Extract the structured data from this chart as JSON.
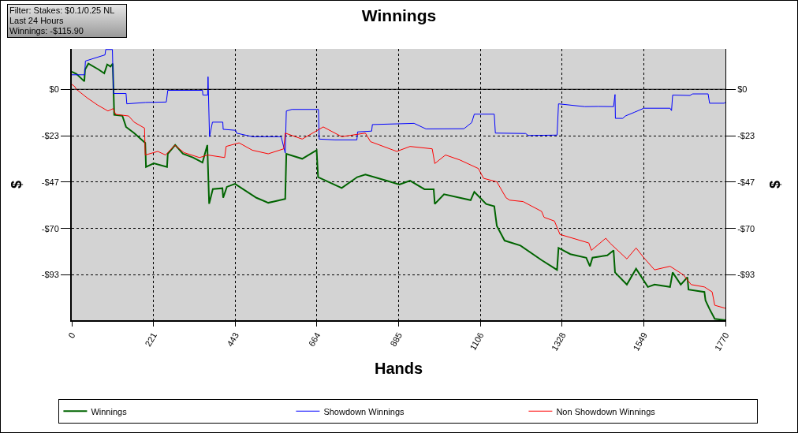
{
  "chart_data": {
    "type": "line",
    "title": "Winnings",
    "xlabel": "Hands",
    "ylabel": "$",
    "y2label": "$",
    "annotations": [
      "Filter: Stakes: $0.1/0.25 NL",
      "Last 24 Hours",
      "Winnings: -$115.90"
    ],
    "xlim": [
      0,
      1770
    ],
    "xticks": [
      0,
      221,
      443,
      664,
      885,
      1106,
      1328,
      1549,
      1770
    ],
    "ylim": [
      -116,
      20.3
    ],
    "yticks": [
      {
        "value": 0,
        "label": "$0"
      },
      {
        "value": -23.3,
        "label": "-$23"
      },
      {
        "value": -46.6,
        "label": "-$47"
      },
      {
        "value": -69.9,
        "label": "-$70"
      },
      {
        "value": -93.2,
        "label": "-$93"
      }
    ],
    "y2lim": [
      -116,
      20.3
    ],
    "y2ticks": [
      {
        "value": 0,
        "label": "$0"
      },
      {
        "value": -23.3,
        "label": "-$23"
      },
      {
        "value": -46.6,
        "label": "-$47"
      },
      {
        "value": -69.9,
        "label": "-$70"
      },
      {
        "value": -93.2,
        "label": "-$93"
      }
    ],
    "ref_lines": [
      {
        "axis": "y",
        "value": 0,
        "color": "#000000"
      }
    ],
    "grid": true,
    "line_style": "solid",
    "marker": "none",
    "legend": "bottom",
    "series": [
      {
        "name": "Winnings",
        "color": "#006400",
        "x": [
          0,
          13,
          34,
          36,
          45,
          73,
          88,
          96,
          105,
          111,
          115,
          137,
          147,
          169,
          199,
          201,
          222,
          258,
          260,
          280,
          301,
          329,
          354,
          367,
          372,
          382,
          408,
          410,
          420,
          442,
          500,
          532,
          578,
          581,
          624,
          663,
          667,
          731,
          773,
          795,
          852,
          887,
          916,
          955,
          980,
          983,
          1008,
          1080,
          1090,
          1122,
          1144,
          1151,
          1172,
          1215,
          1272,
          1314,
          1318,
          1350,
          1393,
          1403,
          1410,
          1450,
          1467,
          1471,
          1503,
          1528,
          1560,
          1578,
          1620,
          1627,
          1649,
          1667,
          1670,
          1713,
          1716,
          1727,
          1741,
          1766,
          1770
        ],
        "values": [
          8.8,
          7.7,
          4,
          9.9,
          12.9,
          9.9,
          8,
          12.5,
          11.4,
          12.9,
          -12.8,
          -13.3,
          -18.9,
          -22,
          -26.9,
          -39,
          -37.2,
          -39,
          -32.4,
          -28,
          -32.4,
          -34.3,
          -36.8,
          -28,
          -57.5,
          -50.1,
          -49.7,
          -54.5,
          -49,
          -47.5,
          -54.5,
          -57,
          -55.1,
          -32.4,
          -34.9,
          -30.6,
          -44.1,
          -49.6,
          -44.1,
          -42.8,
          -45.9,
          -47.8,
          -45.9,
          -50.2,
          -50.2,
          -57.6,
          -52.7,
          -55.7,
          -51.5,
          -57.6,
          -58.8,
          -68.6,
          -76,
          -78.5,
          -85.8,
          -90.7,
          -79.7,
          -82.8,
          -84.6,
          -88.9,
          -84.6,
          -83.4,
          -80.9,
          -92,
          -98.1,
          -90.1,
          -99.3,
          -98.1,
          -99.3,
          -92,
          -98.1,
          -94.4,
          -100.6,
          -101.8,
          -106.1,
          -110.4,
          -115.3,
          -115.9,
          -115.9
        ]
      },
      {
        "name": "Showdown Winnings",
        "color": "#0000ff",
        "x": [
          0,
          35,
          37,
          90,
          92,
          110,
          113,
          147,
          149,
          200,
          256,
          260,
          354,
          355,
          368,
          369,
          373,
          381,
          409,
          410,
          444,
          446,
          489,
          567,
          578,
          581,
          596,
          668,
          670,
          713,
          772,
          774,
          812,
          814,
          927,
          959,
          1062,
          1083,
          1090,
          1144,
          1147,
          1229,
          1236,
          1314,
          1318,
          1389,
          1425,
          1467,
          1471,
          1472,
          1492,
          1499,
          1524,
          1549,
          1620,
          1624,
          1627,
          1674,
          1681,
          1723,
          1727,
          1766,
          1770
        ],
        "values": [
          7.3,
          7.3,
          14.2,
          17.3,
          20,
          20,
          -2.1,
          -2.1,
          -7.3,
          -6.6,
          -6.4,
          -0.5,
          -0.5,
          -2.9,
          -2.9,
          6.3,
          -23.8,
          -16.5,
          -16.5,
          -20.1,
          -20.6,
          -22,
          -23.8,
          -23.8,
          -32,
          -10.9,
          -10.1,
          -10.1,
          -25,
          -25.4,
          -25.4,
          -21.4,
          -21,
          -17.7,
          -17.1,
          -19.9,
          -19.8,
          -16.7,
          -12.5,
          -12.5,
          -22,
          -22.2,
          -23.2,
          -23,
          -7.3,
          -8.7,
          -8.6,
          -8.7,
          -2.6,
          -14.6,
          -14.6,
          -13.4,
          -11.5,
          -9.5,
          -9.5,
          -10.7,
          -2.9,
          -3.1,
          -2.3,
          -2.3,
          -7,
          -7,
          -6.6
        ]
      },
      {
        "name": "Non Showdown Winnings",
        "color": "#ff0000",
        "x": [
          0,
          8,
          12,
          41,
          69,
          98,
          112,
          119,
          154,
          169,
          197,
          199,
          233,
          254,
          279,
          304,
          346,
          368,
          414,
          418,
          453,
          489,
          532,
          574,
          578,
          624,
          681,
          731,
          795,
          809,
          880,
          916,
          976,
          983,
          1012,
          1051,
          1101,
          1115,
          1151,
          1176,
          1186,
          1222,
          1272,
          1279,
          1307,
          1322,
          1400,
          1407,
          1446,
          1457,
          1503,
          1528,
          1549,
          1578,
          1620,
          1656,
          1677,
          1713,
          1734,
          1741,
          1766,
          1770
        ],
        "values": [
          2.5,
          1.4,
          0.1,
          -4.2,
          -7.8,
          -10.9,
          -9.7,
          -12.6,
          -13.4,
          -16.5,
          -19.5,
          -33,
          -31.2,
          -33,
          -28.1,
          -31.8,
          -34.3,
          -33,
          -34.3,
          -28.7,
          -26.9,
          -30.6,
          -32.4,
          -29.9,
          -22,
          -25,
          -18.9,
          -23.8,
          -22,
          -26.3,
          -31.2,
          -28.7,
          -29.9,
          -37.3,
          -33,
          -35.5,
          -39.8,
          -44.7,
          -46.5,
          -54.5,
          -55.7,
          -56.4,
          -61.3,
          -64.3,
          -66.2,
          -72.9,
          -77.2,
          -80.9,
          -74.8,
          -77.2,
          -85.2,
          -79.7,
          -84.6,
          -90.7,
          -88.9,
          -93.2,
          -98.1,
          -99.3,
          -101.8,
          -108.5,
          -109.8,
          -110
        ]
      }
    ]
  }
}
